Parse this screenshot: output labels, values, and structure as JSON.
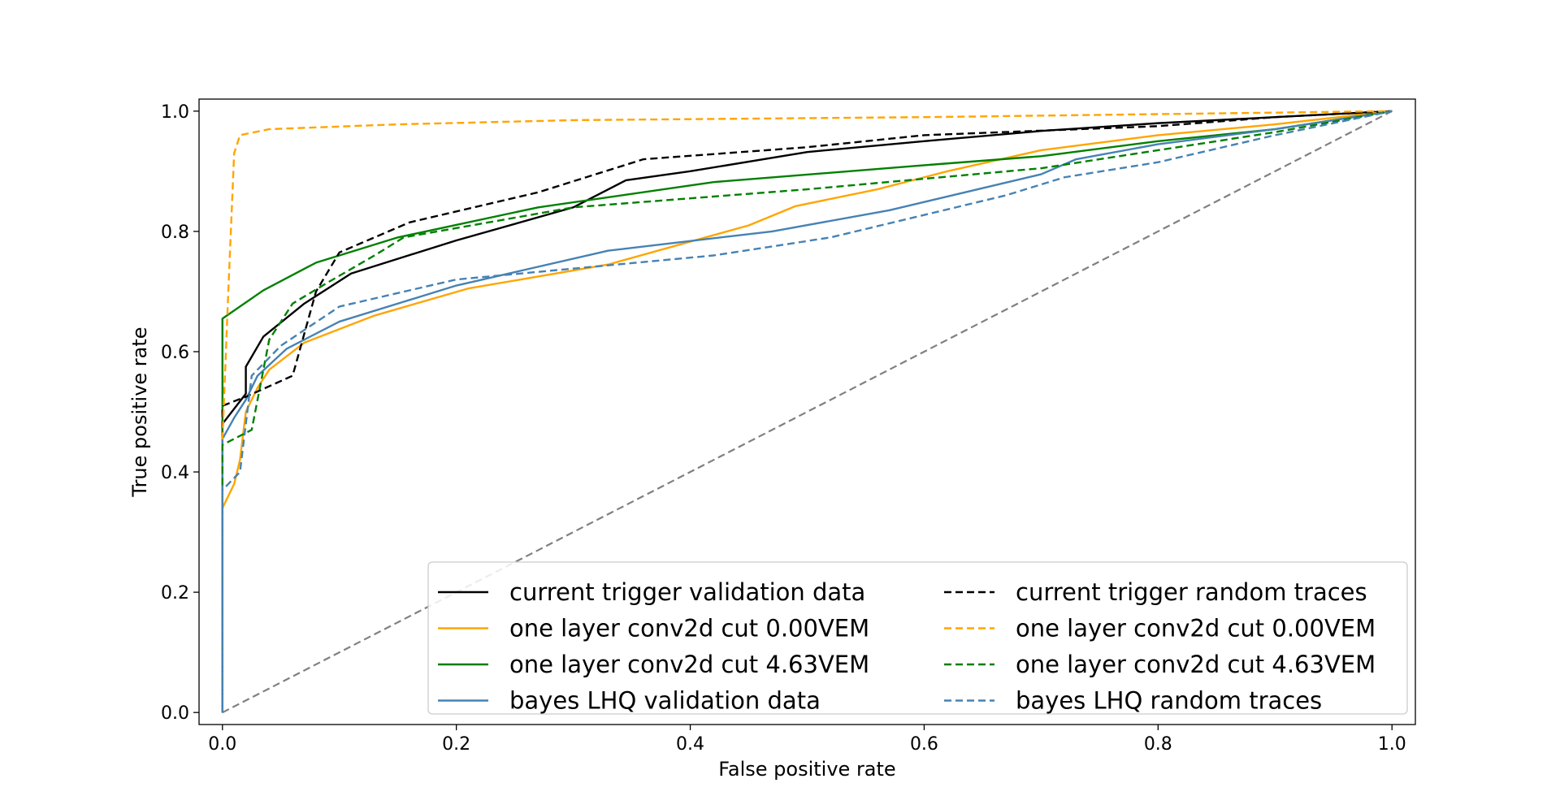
{
  "chart_data": {
    "type": "line",
    "title": "",
    "xlabel": "False positive rate",
    "ylabel": "True positive rate",
    "xlim": [
      -0.02,
      1.02
    ],
    "ylim": [
      -0.02,
      1.02
    ],
    "xticks": [
      "0.0",
      "0.2",
      "0.4",
      "0.6",
      "0.8",
      "1.0"
    ],
    "yticks": [
      "0.0",
      "0.2",
      "0.4",
      "0.6",
      "0.8",
      "1.0"
    ],
    "grid": false,
    "legend": {
      "placement": "lower-right",
      "columns": 2
    },
    "reference_line": {
      "color": "#808080",
      "dash": "dashed",
      "points": [
        [
          0,
          0
        ],
        [
          1,
          1
        ]
      ]
    },
    "series": [
      {
        "name": "current trigger validation data",
        "color": "#000000",
        "dash": "solid",
        "points": [
          [
            0,
            0
          ],
          [
            0,
            0.48
          ],
          [
            0.02,
            0.53
          ],
          [
            0.02,
            0.575
          ],
          [
            0.035,
            0.625
          ],
          [
            0.07,
            0.68
          ],
          [
            0.11,
            0.73
          ],
          [
            0.2,
            0.785
          ],
          [
            0.3,
            0.84
          ],
          [
            0.345,
            0.885
          ],
          [
            0.4,
            0.9
          ],
          [
            0.5,
            0.932
          ],
          [
            0.6,
            0.95
          ],
          [
            0.7,
            0.967
          ],
          [
            0.8,
            0.98
          ],
          [
            0.9,
            0.99
          ],
          [
            1,
            1
          ]
        ]
      },
      {
        "name": "one layer conv2d cut 0.00VEM",
        "color": "#FFA500",
        "dash": "solid",
        "points": [
          [
            0,
            0
          ],
          [
            0,
            0.34
          ],
          [
            0.01,
            0.38
          ],
          [
            0.015,
            0.42
          ],
          [
            0.02,
            0.5
          ],
          [
            0.03,
            0.54
          ],
          [
            0.04,
            0.57
          ],
          [
            0.07,
            0.615
          ],
          [
            0.13,
            0.66
          ],
          [
            0.21,
            0.705
          ],
          [
            0.33,
            0.745
          ],
          [
            0.45,
            0.81
          ],
          [
            0.49,
            0.842
          ],
          [
            0.56,
            0.87
          ],
          [
            0.62,
            0.9
          ],
          [
            0.7,
            0.935
          ],
          [
            0.8,
            0.96
          ],
          [
            0.9,
            0.978
          ],
          [
            1,
            1
          ]
        ]
      },
      {
        "name": "one layer conv2d cut 4.63VEM",
        "color": "#008000",
        "dash": "solid",
        "points": [
          [
            0,
            0
          ],
          [
            0,
            0.655
          ],
          [
            0.035,
            0.702
          ],
          [
            0.08,
            0.748
          ],
          [
            0.15,
            0.79
          ],
          [
            0.27,
            0.84
          ],
          [
            0.42,
            0.882
          ],
          [
            0.6,
            0.91
          ],
          [
            0.7,
            0.925
          ],
          [
            0.8,
            0.95
          ],
          [
            0.9,
            0.97
          ],
          [
            1,
            1
          ]
        ]
      },
      {
        "name": "bayes LHQ validation data",
        "color": "#4682B4",
        "dash": "solid",
        "points": [
          [
            0,
            0
          ],
          [
            0,
            0.455
          ],
          [
            0.01,
            0.49
          ],
          [
            0.02,
            0.52
          ],
          [
            0.03,
            0.56
          ],
          [
            0.055,
            0.605
          ],
          [
            0.1,
            0.65
          ],
          [
            0.2,
            0.71
          ],
          [
            0.33,
            0.768
          ],
          [
            0.47,
            0.8
          ],
          [
            0.57,
            0.835
          ],
          [
            0.7,
            0.895
          ],
          [
            0.73,
            0.92
          ],
          [
            0.8,
            0.945
          ],
          [
            0.9,
            0.97
          ],
          [
            1,
            1
          ]
        ]
      },
      {
        "name": "current trigger random traces",
        "color": "#000000",
        "dash": "dashed",
        "points": [
          [
            0,
            0
          ],
          [
            0,
            0.51
          ],
          [
            0.02,
            0.525
          ],
          [
            0.06,
            0.56
          ],
          [
            0.08,
            0.7
          ],
          [
            0.1,
            0.765
          ],
          [
            0.16,
            0.815
          ],
          [
            0.27,
            0.865
          ],
          [
            0.36,
            0.92
          ],
          [
            0.5,
            0.94
          ],
          [
            0.6,
            0.96
          ],
          [
            0.8,
            0.975
          ],
          [
            0.9,
            0.99
          ],
          [
            1,
            1
          ]
        ]
      },
      {
        "name": "one layer conv2d cut 0.00VEM",
        "color": "#FFA500",
        "dash": "dashed",
        "points": [
          [
            0,
            0
          ],
          [
            0,
            0.455
          ],
          [
            0.005,
            0.7
          ],
          [
            0.01,
            0.93
          ],
          [
            0.015,
            0.96
          ],
          [
            0.04,
            0.97
          ],
          [
            0.15,
            0.978
          ],
          [
            0.3,
            0.985
          ],
          [
            0.6,
            0.99
          ],
          [
            0.8,
            0.995
          ],
          [
            1,
            1
          ]
        ]
      },
      {
        "name": "one layer conv2d cut 4.63VEM",
        "color": "#008000",
        "dash": "dashed",
        "points": [
          [
            0,
            0
          ],
          [
            0,
            0.445
          ],
          [
            0.025,
            0.47
          ],
          [
            0.04,
            0.62
          ],
          [
            0.06,
            0.68
          ],
          [
            0.09,
            0.715
          ],
          [
            0.13,
            0.76
          ],
          [
            0.155,
            0.79
          ],
          [
            0.3,
            0.84
          ],
          [
            0.5,
            0.87
          ],
          [
            0.7,
            0.905
          ],
          [
            0.8,
            0.935
          ],
          [
            0.9,
            0.965
          ],
          [
            1,
            1
          ]
        ]
      },
      {
        "name": "bayes LHQ random traces",
        "color": "#4682B4",
        "dash": "dashed",
        "points": [
          [
            0,
            0
          ],
          [
            0,
            0.37
          ],
          [
            0.015,
            0.4
          ],
          [
            0.025,
            0.56
          ],
          [
            0.05,
            0.61
          ],
          [
            0.1,
            0.675
          ],
          [
            0.2,
            0.72
          ],
          [
            0.42,
            0.76
          ],
          [
            0.52,
            0.79
          ],
          [
            0.67,
            0.86
          ],
          [
            0.72,
            0.89
          ],
          [
            0.8,
            0.915
          ],
          [
            0.9,
            0.96
          ],
          [
            1,
            1
          ]
        ]
      }
    ]
  }
}
